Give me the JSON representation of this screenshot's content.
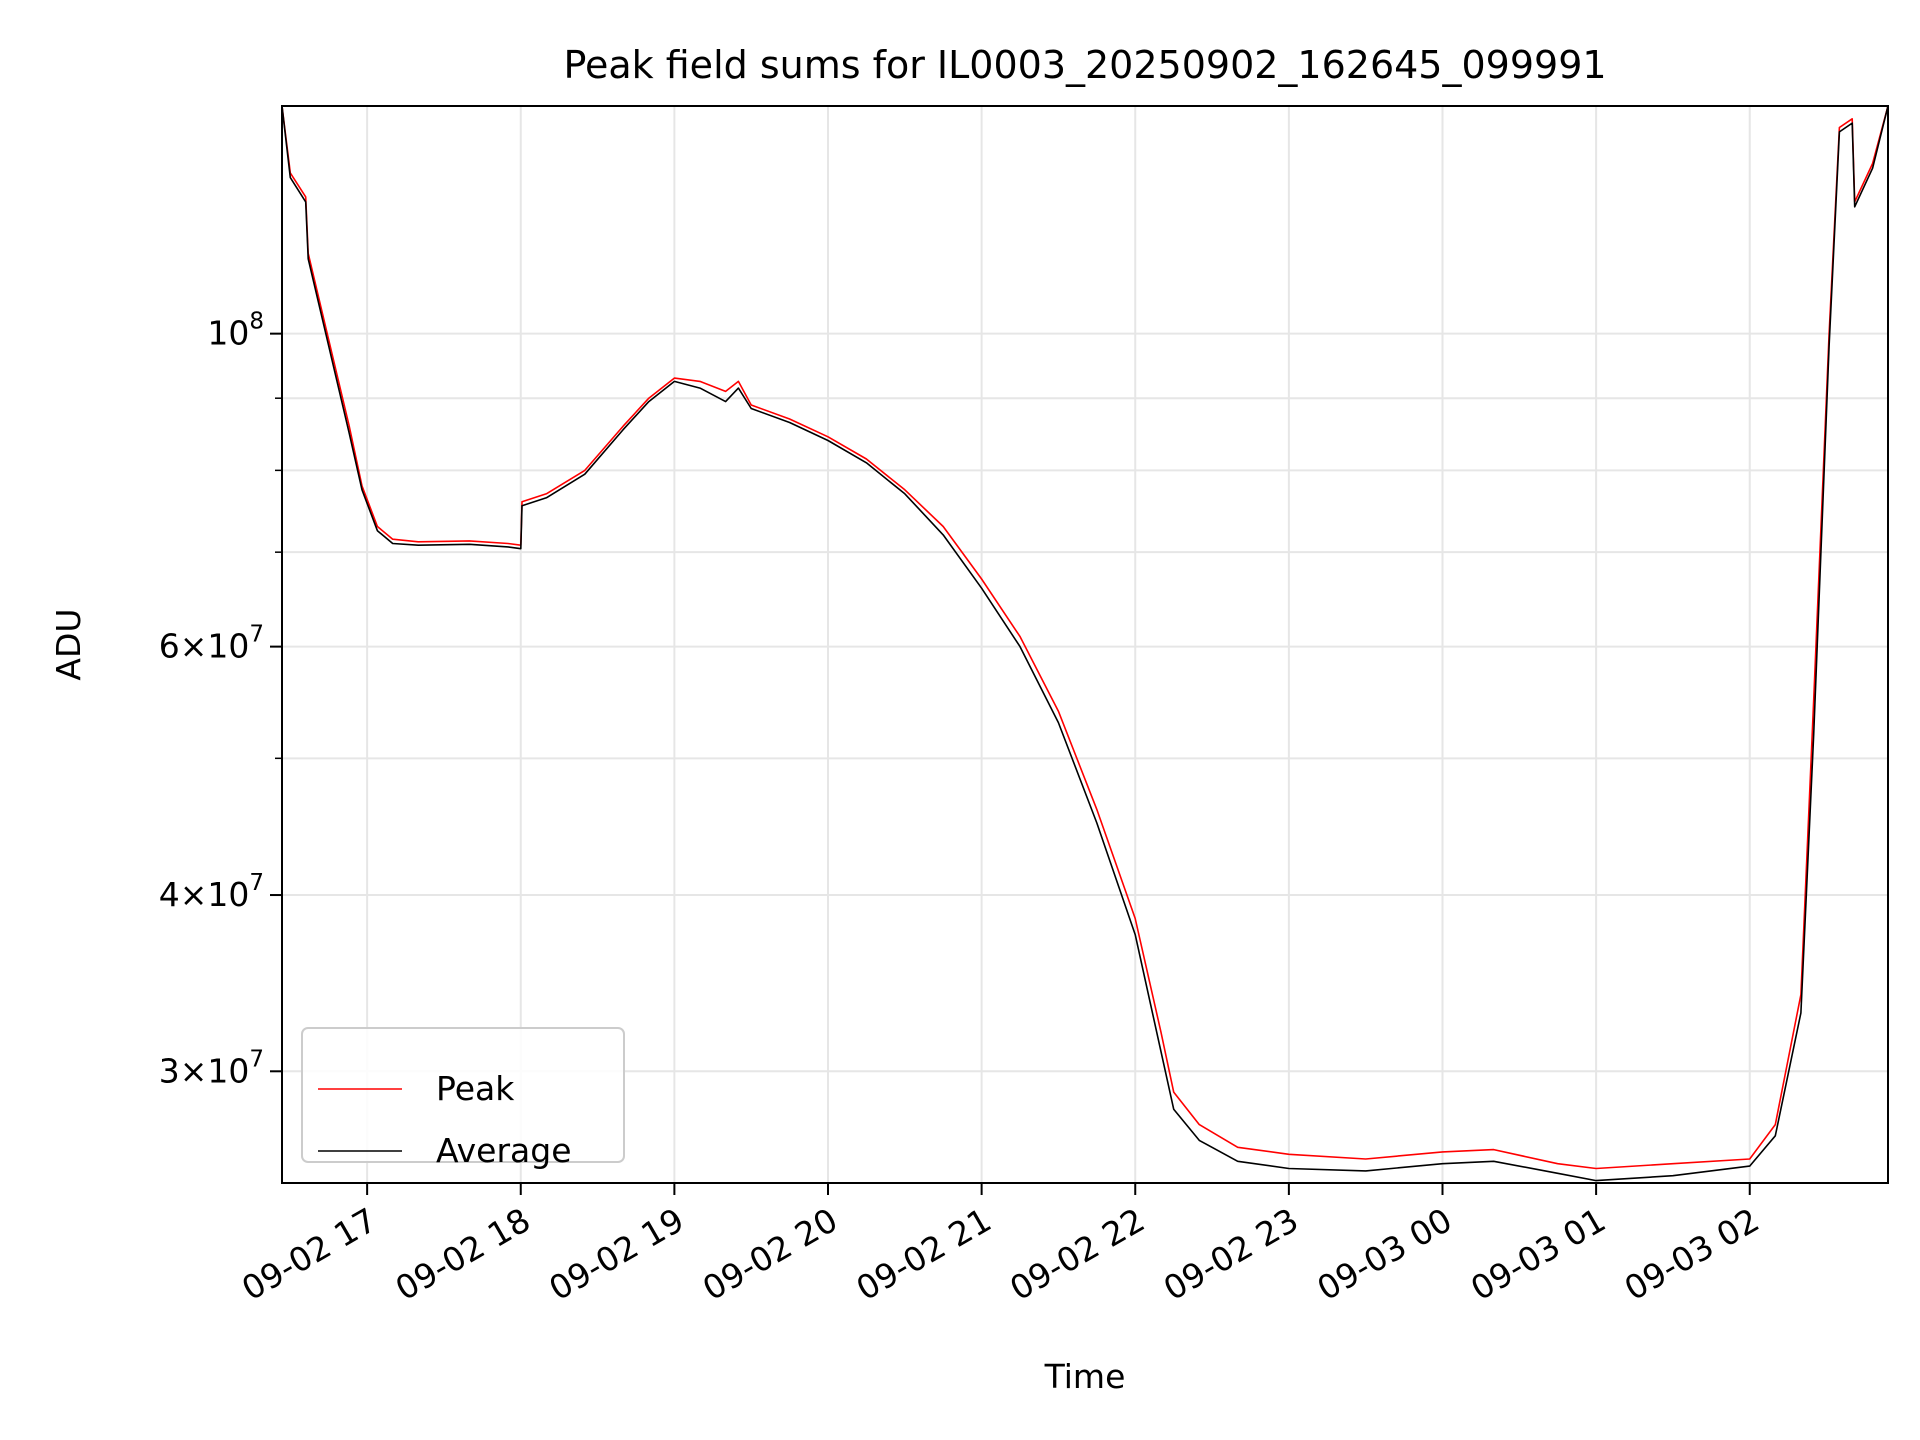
{
  "chart_data": {
    "type": "line",
    "title": "Peak field sums for IL0003_20250902_162645_099991",
    "xlabel": "Time",
    "ylabel": "ADU",
    "x_ticks": [
      "09-02 17",
      "09-02 18",
      "09-02 19",
      "09-02 20",
      "09-02 21",
      "09-02 22",
      "09-02 23",
      "09-03 00",
      "09-03 01",
      "09-03 02"
    ],
    "x_range": [
      "2025-09-02 16:26:45",
      "2025-09-03 02:54:00"
    ],
    "y_scale": "log",
    "y_range": [
      25000000,
      145000000
    ],
    "y_major_ticks": [
      {
        "value": 100000000,
        "mantissa": "",
        "base": "10",
        "exp": "8"
      },
      {
        "value": 60000000,
        "mantissa": "6",
        "base": "10",
        "exp": "7"
      },
      {
        "value": 40000000,
        "mantissa": "4",
        "base": "10",
        "exp": "7"
      },
      {
        "value": 30000000,
        "mantissa": "3",
        "base": "10",
        "exp": "7"
      }
    ],
    "y_minor_ticks": [
      90000000,
      80000000,
      70000000,
      50000000
    ],
    "grid": true,
    "legend_position": "lower-left",
    "colors": {
      "peak": "#ff0000",
      "average": "#000000",
      "grid": "#e6e6e6"
    },
    "series": [
      {
        "name": "Peak",
        "color": "#ff0000",
        "points": [
          [
            "2025-09-02 16:26:45",
            145000000
          ],
          [
            "2025-09-02 16:30",
            130000000
          ],
          [
            "2025-09-02 16:36",
            125000000
          ],
          [
            "2025-09-02 16:37",
            114000000
          ],
          [
            "2025-09-02 16:45",
            99000000
          ],
          [
            "2025-09-02 16:53",
            86000000
          ],
          [
            "2025-09-02 16:58",
            78000000
          ],
          [
            "2025-09-02 17:04",
            73000000
          ],
          [
            "2025-09-02 17:10",
            71500000
          ],
          [
            "2025-09-02 17:20",
            71200000
          ],
          [
            "2025-09-02 17:40",
            71300000
          ],
          [
            "2025-09-02 17:55",
            71000000
          ],
          [
            "2025-09-02 18:00",
            70800000
          ],
          [
            "2025-09-02 18:00:30",
            76000000
          ],
          [
            "2025-09-02 18:10",
            77000000
          ],
          [
            "2025-09-02 18:25",
            80000000
          ],
          [
            "2025-09-02 18:40",
            86000000
          ],
          [
            "2025-09-02 18:50",
            90000000
          ],
          [
            "2025-09-02 19:00",
            93000000
          ],
          [
            "2025-09-02 19:10",
            92500000
          ],
          [
            "2025-09-02 19:20",
            91000000
          ],
          [
            "2025-09-02 19:25",
            92500000
          ],
          [
            "2025-09-02 19:30",
            89000000
          ],
          [
            "2025-09-02 19:45",
            87000000
          ],
          [
            "2025-09-02 20:00",
            84500000
          ],
          [
            "2025-09-02 20:15",
            81500000
          ],
          [
            "2025-09-02 20:30",
            77500000
          ],
          [
            "2025-09-02 20:45",
            73000000
          ],
          [
            "2025-09-02 21:00",
            67000000
          ],
          [
            "2025-09-02 21:15",
            61000000
          ],
          [
            "2025-09-02 21:30",
            54000000
          ],
          [
            "2025-09-02 21:45",
            46000000
          ],
          [
            "2025-09-02 22:00",
            38500000
          ],
          [
            "2025-09-02 22:10",
            32000000
          ],
          [
            "2025-09-02 22:15",
            29000000
          ],
          [
            "2025-09-02 22:25",
            27500000
          ],
          [
            "2025-09-02 22:40",
            26500000
          ],
          [
            "2025-09-02 23:00",
            26200000
          ],
          [
            "2025-09-02 23:30",
            26000000
          ],
          [
            "2025-09-03 00:00",
            26300000
          ],
          [
            "2025-09-03 00:20",
            26400000
          ],
          [
            "2025-09-03 00:45",
            25800000
          ],
          [
            "2025-09-03 01:00",
            25600000
          ],
          [
            "2025-09-03 01:30",
            25800000
          ],
          [
            "2025-09-03 02:00",
            26000000
          ],
          [
            "2025-09-03 02:10",
            27500000
          ],
          [
            "2025-09-03 02:20",
            34000000
          ],
          [
            "2025-09-03 02:25",
            55000000
          ],
          [
            "2025-09-03 02:31",
            100000000
          ],
          [
            "2025-09-03 02:35",
            140000000
          ],
          [
            "2025-09-03 02:40",
            142000000
          ],
          [
            "2025-09-03 02:41",
            124000000
          ],
          [
            "2025-09-03 02:48",
            132000000
          ],
          [
            "2025-09-03 02:54",
            145000000
          ]
        ]
      },
      {
        "name": "Average",
        "color": "#000000",
        "points": [
          [
            "2025-09-02 16:26:45",
            145000000
          ],
          [
            "2025-09-02 16:30",
            129000000
          ],
          [
            "2025-09-02 16:36",
            124000000
          ],
          [
            "2025-09-02 16:37",
            113000000
          ],
          [
            "2025-09-02 16:45",
            98000000
          ],
          [
            "2025-09-02 16:53",
            85000000
          ],
          [
            "2025-09-02 16:58",
            77500000
          ],
          [
            "2025-09-02 17:04",
            72500000
          ],
          [
            "2025-09-02 17:10",
            71000000
          ],
          [
            "2025-09-02 17:20",
            70800000
          ],
          [
            "2025-09-02 17:40",
            70900000
          ],
          [
            "2025-09-02 17:55",
            70600000
          ],
          [
            "2025-09-02 18:00",
            70400000
          ],
          [
            "2025-09-02 18:00:30",
            75500000
          ],
          [
            "2025-09-02 18:10",
            76500000
          ],
          [
            "2025-09-02 18:25",
            79500000
          ],
          [
            "2025-09-02 18:40",
            85500000
          ],
          [
            "2025-09-02 18:50",
            89500000
          ],
          [
            "2025-09-02 19:00",
            92500000
          ],
          [
            "2025-09-02 19:10",
            91500000
          ],
          [
            "2025-09-02 19:20",
            89500000
          ],
          [
            "2025-09-02 19:25",
            91500000
          ],
          [
            "2025-09-02 19:30",
            88500000
          ],
          [
            "2025-09-02 19:45",
            86500000
          ],
          [
            "2025-09-02 20:00",
            84000000
          ],
          [
            "2025-09-02 20:15",
            81000000
          ],
          [
            "2025-09-02 20:30",
            77000000
          ],
          [
            "2025-09-02 20:45",
            72000000
          ],
          [
            "2025-09-02 21:00",
            66000000
          ],
          [
            "2025-09-02 21:15",
            60000000
          ],
          [
            "2025-09-02 21:30",
            53000000
          ],
          [
            "2025-09-02 21:45",
            45000000
          ],
          [
            "2025-09-02 22:00",
            37500000
          ],
          [
            "2025-09-02 22:10",
            31000000
          ],
          [
            "2025-09-02 22:15",
            28200000
          ],
          [
            "2025-09-02 22:25",
            26800000
          ],
          [
            "2025-09-02 22:40",
            25900000
          ],
          [
            "2025-09-02 23:00",
            25600000
          ],
          [
            "2025-09-02 23:30",
            25500000
          ],
          [
            "2025-09-03 00:00",
            25800000
          ],
          [
            "2025-09-03 00:20",
            25900000
          ],
          [
            "2025-09-03 00:45",
            25400000
          ],
          [
            "2025-09-03 01:00",
            25100000
          ],
          [
            "2025-09-03 01:30",
            25300000
          ],
          [
            "2025-09-03 02:00",
            25700000
          ],
          [
            "2025-09-03 02:10",
            27000000
          ],
          [
            "2025-09-03 02:20",
            33000000
          ],
          [
            "2025-09-03 02:25",
            52000000
          ],
          [
            "2025-09-03 02:31",
            98000000
          ],
          [
            "2025-09-03 02:35",
            139000000
          ],
          [
            "2025-09-03 02:40",
            141000000
          ],
          [
            "2025-09-03 02:41",
            123000000
          ],
          [
            "2025-09-03 02:48",
            131000000
          ],
          [
            "2025-09-03 02:54",
            145000000
          ]
        ]
      }
    ]
  }
}
